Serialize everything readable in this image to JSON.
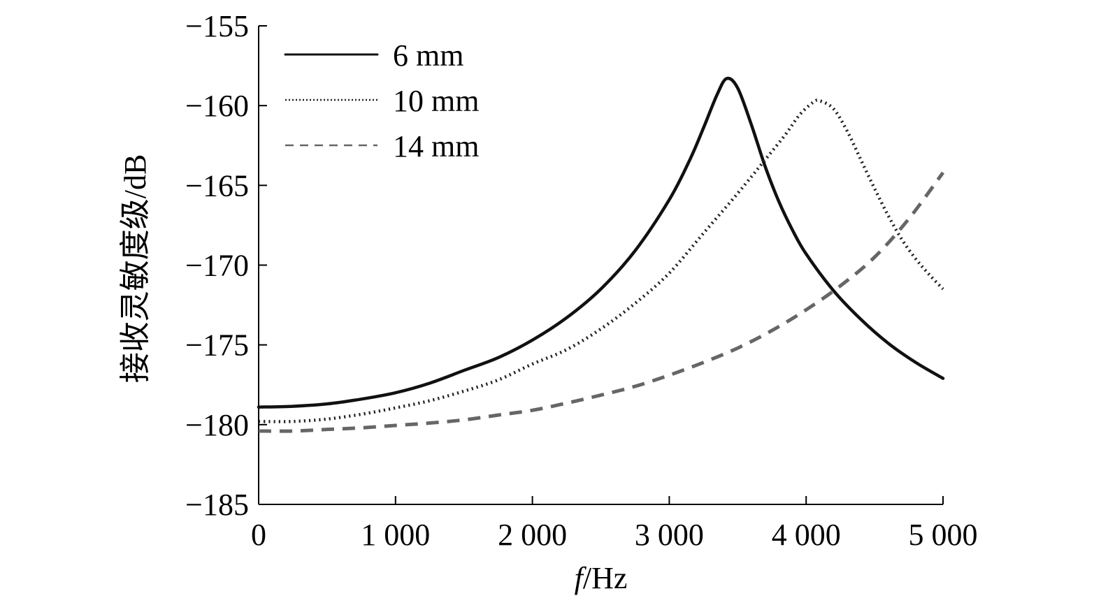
{
  "chart_data": {
    "type": "line",
    "xlabel_italic": "f",
    "xlabel_rest": "/Hz",
    "ylabel": "接收灵敏度级/dB",
    "xlim": [
      0,
      5000
    ],
    "ylim": [
      -185,
      -155
    ],
    "x_ticks": [
      0,
      1000,
      2000,
      3000,
      4000,
      5000
    ],
    "x_tick_labels": [
      "0",
      "1 000",
      "2 000",
      "3 000",
      "4 000",
      "5 000"
    ],
    "y_ticks": [
      -155,
      -160,
      -165,
      -170,
      -175,
      -180,
      -185
    ],
    "y_tick_labels": [
      "−155",
      "−160",
      "−165",
      "−170",
      "−175",
      "−180",
      "−185"
    ],
    "grid": false,
    "legend_position": "top-left",
    "series": [
      {
        "name": "6 mm",
        "style": "solid",
        "color": "#111111",
        "x": [
          0,
          250,
          500,
          750,
          1000,
          1250,
          1500,
          1750,
          2000,
          2250,
          2500,
          2750,
          3000,
          3150,
          3250,
          3350,
          3420,
          3500,
          3600,
          3700,
          3800,
          3900,
          4000,
          4200,
          4400,
          4600,
          4800,
          5000
        ],
        "y": [
          -178.9,
          -178.85,
          -178.7,
          -178.4,
          -178.0,
          -177.4,
          -176.6,
          -175.8,
          -174.7,
          -173.3,
          -171.5,
          -169.1,
          -165.9,
          -163.4,
          -161.4,
          -159.3,
          -158.3,
          -158.9,
          -161.2,
          -163.8,
          -166.0,
          -167.8,
          -169.3,
          -171.6,
          -173.4,
          -174.9,
          -176.1,
          -177.1
        ]
      },
      {
        "name": "10 mm",
        "style": "dotted",
        "color": "#222222",
        "x": [
          0,
          250,
          500,
          750,
          1000,
          1250,
          1500,
          1750,
          2000,
          2250,
          2500,
          2750,
          3000,
          3250,
          3500,
          3700,
          3850,
          3950,
          4050,
          4100,
          4200,
          4300,
          4400,
          4500,
          4600,
          4700,
          4800,
          4900,
          5000
        ],
        "y": [
          -179.8,
          -179.8,
          -179.65,
          -179.35,
          -178.95,
          -178.5,
          -177.9,
          -177.2,
          -176.2,
          -175.3,
          -174.0,
          -172.4,
          -170.5,
          -168.0,
          -165.5,
          -163.4,
          -161.8,
          -160.6,
          -159.8,
          -159.7,
          -160.2,
          -161.6,
          -163.4,
          -165.2,
          -166.9,
          -168.4,
          -169.6,
          -170.6,
          -171.5
        ]
      },
      {
        "name": "14 mm",
        "style": "dashed",
        "color": "#666666",
        "x": [
          0,
          250,
          500,
          750,
          1000,
          1250,
          1500,
          1750,
          2000,
          2250,
          2500,
          2750,
          3000,
          3250,
          3500,
          3750,
          4000,
          4250,
          4500,
          4750,
          5000
        ],
        "y": [
          -180.4,
          -180.4,
          -180.3,
          -180.2,
          -180.05,
          -179.9,
          -179.7,
          -179.4,
          -179.1,
          -178.65,
          -178.15,
          -177.6,
          -176.9,
          -176.1,
          -175.2,
          -174.1,
          -172.8,
          -171.3,
          -169.5,
          -167.1,
          -164.2
        ]
      }
    ]
  }
}
